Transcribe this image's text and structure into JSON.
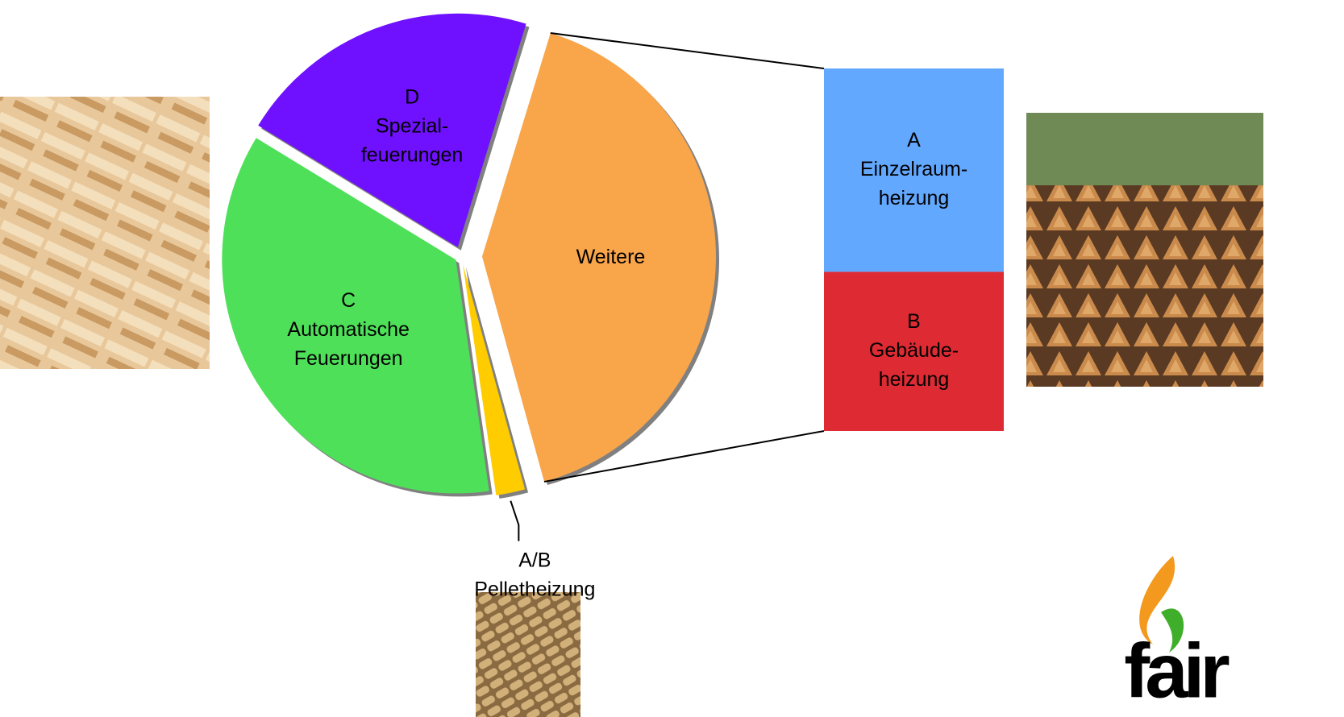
{
  "chart_data": {
    "type": "pie",
    "categories": [
      [
        "Weitere"
      ],
      [
        "A/B",
        "Pelletheizung"
      ],
      [
        "C",
        "Automatische",
        "Feuerungen"
      ],
      [
        "D",
        "Spezial-",
        "feuerungen"
      ]
    ],
    "values": [
      41,
      2,
      36,
      21
    ],
    "colors": [
      "#f9a54a",
      "#ffcc00",
      "#4fe05a",
      "#6f10ff"
    ],
    "breakdown": {
      "type": "bar",
      "categories": [
        [
          "A",
          "Einzelraum-",
          "heizung"
        ],
        [
          "B",
          "Gebäude-",
          "heizung"
        ]
      ],
      "values": [
        23,
        18
      ],
      "colors": [
        "#62a8ff",
        "#de2b33"
      ]
    }
  },
  "logo": {
    "text": "fair"
  }
}
